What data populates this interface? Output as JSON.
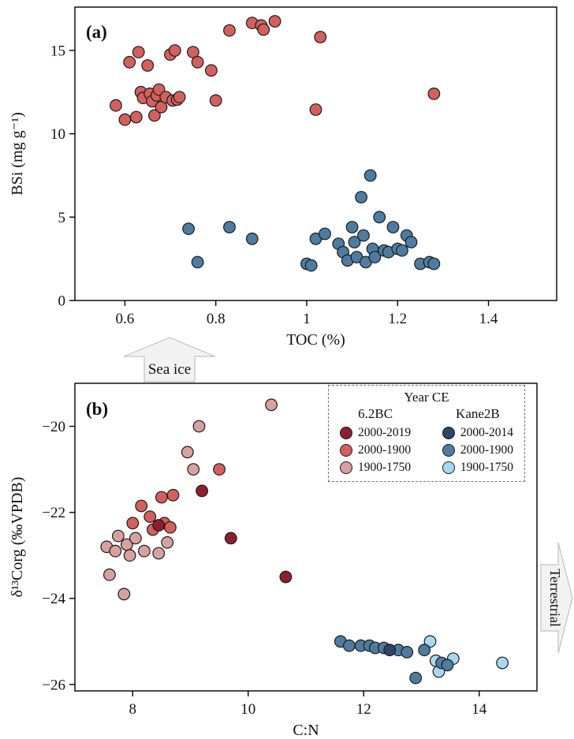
{
  "figure": {
    "sea_ice_arrow": "Sea ice",
    "terrestrial_arrow": "Terrestrial"
  },
  "colors": {
    "red_dark": "#8e1f2f",
    "red_mid": "#d4605e",
    "red_light": "#d9a0a0",
    "blue_dark": "#2f4468",
    "blue_mid": "#4e7ca1",
    "blue_light": "#a8d8f0",
    "arrow_fill": "#f2f2f2",
    "arrow_stroke": "#c2c2c2"
  },
  "chart_data": [
    {
      "id": "a",
      "type": "scatter",
      "panel_label": "(a)",
      "xlabel": "TOC (%)",
      "ylabel": "BSi (mg g⁻¹)",
      "xlim": [
        0.49,
        1.55
      ],
      "ylim": [
        0,
        17.6
      ],
      "grid": false,
      "xticks": [
        {
          "v": 0.6,
          "label": "0.6"
        },
        {
          "v": 0.8,
          "label": "0.8"
        },
        {
          "v": 1.0,
          "label": "1"
        },
        {
          "v": 1.2,
          "label": "1.2"
        },
        {
          "v": 1.4,
          "label": "1.4"
        }
      ],
      "yticks": [
        {
          "v": 0,
          "label": "0"
        },
        {
          "v": 5,
          "label": "5"
        },
        {
          "v": 10,
          "label": "10"
        },
        {
          "v": 15,
          "label": "15"
        }
      ],
      "series": [
        {
          "name": "6.2BC",
          "color": "#d4605e",
          "points": [
            [
              0.58,
              11.7
            ],
            [
              0.6,
              10.85
            ],
            [
              0.61,
              14.3
            ],
            [
              0.625,
              11.0
            ],
            [
              0.63,
              14.9
            ],
            [
              0.635,
              12.5
            ],
            [
              0.64,
              12.15
            ],
            [
              0.65,
              14.1
            ],
            [
              0.655,
              12.4
            ],
            [
              0.66,
              11.95
            ],
            [
              0.665,
              11.1
            ],
            [
              0.67,
              12.3
            ],
            [
              0.675,
              12.65
            ],
            [
              0.68,
              11.6
            ],
            [
              0.69,
              12.2
            ],
            [
              0.7,
              14.75
            ],
            [
              0.705,
              12.0
            ],
            [
              0.71,
              15.0
            ],
            [
              0.715,
              12.05
            ],
            [
              0.72,
              12.2
            ],
            [
              0.75,
              14.9
            ],
            [
              0.76,
              14.3
            ],
            [
              0.79,
              13.8
            ],
            [
              0.8,
              12.0
            ],
            [
              0.83,
              16.2
            ],
            [
              0.88,
              16.65
            ],
            [
              0.9,
              16.5
            ],
            [
              0.905,
              16.25
            ],
            [
              0.93,
              16.75
            ],
            [
              1.02,
              11.45
            ],
            [
              1.03,
              15.8
            ],
            [
              1.28,
              12.4
            ]
          ]
        },
        {
          "name": "Kane2B",
          "color": "#4e7ca1",
          "points": [
            [
              0.74,
              4.3
            ],
            [
              0.76,
              2.3
            ],
            [
              0.83,
              4.4
            ],
            [
              0.88,
              3.7
            ],
            [
              1.0,
              2.2
            ],
            [
              1.01,
              2.1
            ],
            [
              1.02,
              3.7
            ],
            [
              1.04,
              4.0
            ],
            [
              1.07,
              3.4
            ],
            [
              1.08,
              2.9
            ],
            [
              1.09,
              2.4
            ],
            [
              1.1,
              4.4
            ],
            [
              1.105,
              3.5
            ],
            [
              1.11,
              2.6
            ],
            [
              1.12,
              6.2
            ],
            [
              1.125,
              3.9
            ],
            [
              1.13,
              2.3
            ],
            [
              1.14,
              7.5
            ],
            [
              1.145,
              3.1
            ],
            [
              1.15,
              2.6
            ],
            [
              1.16,
              5.0
            ],
            [
              1.17,
              3.0
            ],
            [
              1.18,
              2.9
            ],
            [
              1.19,
              4.4
            ],
            [
              1.2,
              3.1
            ],
            [
              1.21,
              3.0
            ],
            [
              1.22,
              3.9
            ],
            [
              1.23,
              3.5
            ],
            [
              1.25,
              2.2
            ],
            [
              1.27,
              2.3
            ],
            [
              1.28,
              2.2
            ]
          ]
        }
      ]
    },
    {
      "id": "b",
      "type": "scatter",
      "panel_label": "(b)",
      "xlabel": "C:N",
      "ylabel": "δ¹³Corg (‰VPDB)",
      "xlim": [
        7,
        15
      ],
      "ylim": [
        -26.15,
        -19.0
      ],
      "grid": false,
      "xticks": [
        {
          "v": 8,
          "label": "8"
        },
        {
          "v": 10,
          "label": "10"
        },
        {
          "v": 12,
          "label": "12"
        },
        {
          "v": 14,
          "label": "14"
        }
      ],
      "yticks": [
        {
          "v": -20,
          "label": "−20"
        },
        {
          "v": -22,
          "label": "−22"
        },
        {
          "v": -24,
          "label": "−24"
        },
        {
          "v": -26,
          "label": "−26"
        }
      ],
      "series": [
        {
          "name": "6.2BC 1900-1750",
          "color": "#d9a0a0",
          "points": [
            [
              7.55,
              -22.8
            ],
            [
              7.6,
              -23.45
            ],
            [
              7.7,
              -22.9
            ],
            [
              7.75,
              -22.55
            ],
            [
              7.85,
              -23.9
            ],
            [
              7.9,
              -22.75
            ],
            [
              7.95,
              -23.0
            ],
            [
              8.05,
              -22.6
            ],
            [
              8.2,
              -22.9
            ],
            [
              8.45,
              -22.95
            ],
            [
              8.6,
              -22.7
            ],
            [
              8.95,
              -20.6
            ],
            [
              9.05,
              -21.0
            ],
            [
              9.15,
              -20.0
            ],
            [
              10.4,
              -19.5
            ]
          ]
        },
        {
          "name": "6.2BC 2000-1900",
          "color": "#d4605e",
          "points": [
            [
              8.0,
              -22.25
            ],
            [
              8.15,
              -21.85
            ],
            [
              8.3,
              -22.1
            ],
            [
              8.35,
              -22.4
            ],
            [
              8.5,
              -21.65
            ],
            [
              8.55,
              -22.25
            ],
            [
              8.65,
              -22.35
            ],
            [
              8.7,
              -21.6
            ],
            [
              9.5,
              -21.0
            ]
          ]
        },
        {
          "name": "6.2BC 2000-2019",
          "color": "#8e1f2f",
          "points": [
            [
              8.45,
              -22.3
            ],
            [
              9.2,
              -21.5
            ],
            [
              9.7,
              -22.6
            ],
            [
              10.65,
              -23.5
            ]
          ]
        },
        {
          "name": "Kane2B 1900-1750",
          "color": "#a8d8f0",
          "points": [
            [
              13.15,
              -25.0
            ],
            [
              13.25,
              -25.45
            ],
            [
              13.3,
              -25.7
            ],
            [
              13.55,
              -25.4
            ],
            [
              14.4,
              -25.5
            ]
          ]
        },
        {
          "name": "Kane2B 2000-1900",
          "color": "#4e7ca1",
          "points": [
            [
              11.6,
              -25.0
            ],
            [
              11.75,
              -25.1
            ],
            [
              11.95,
              -25.1
            ],
            [
              12.1,
              -25.1
            ],
            [
              12.2,
              -25.15
            ],
            [
              12.35,
              -25.15
            ],
            [
              12.6,
              -25.2
            ],
            [
              12.75,
              -25.25
            ],
            [
              12.9,
              -25.85
            ],
            [
              13.05,
              -25.2
            ],
            [
              13.35,
              -25.5
            ],
            [
              13.45,
              -25.55
            ]
          ]
        },
        {
          "name": "Kane2B 2000-2014",
          "color": "#2f4468",
          "points": [
            [
              12.45,
              -25.2
            ]
          ]
        }
      ]
    }
  ],
  "legend": {
    "title": "Year CE",
    "columns": [
      {
        "header": "6.2BC",
        "items": [
          {
            "label": "2000-2019",
            "color": "#8e1f2f"
          },
          {
            "label": "2000-1900",
            "color": "#d4605e"
          },
          {
            "label": "1900-1750",
            "color": "#d9a0a0"
          }
        ]
      },
      {
        "header": "Kane2B",
        "items": [
          {
            "label": "2000-2014",
            "color": "#2f4468"
          },
          {
            "label": "2000-1900",
            "color": "#4e7ca1"
          },
          {
            "label": "1900-1750",
            "color": "#a8d8f0"
          }
        ]
      }
    ]
  }
}
